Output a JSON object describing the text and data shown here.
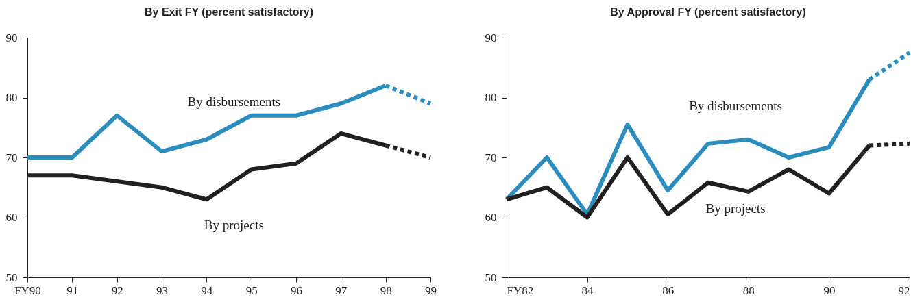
{
  "chart_data": [
    {
      "type": "line",
      "title": "By Exit FY (percent satisfactory)",
      "categories": [
        "FY90",
        "91",
        "92",
        "93",
        "94",
        "95",
        "96",
        "97",
        "98",
        "99"
      ],
      "ylim": [
        50,
        90
      ],
      "yticks": [
        50,
        60,
        70,
        80,
        90
      ],
      "grid": false,
      "marker": "none",
      "series": [
        {
          "name": "By disbursements",
          "color": "#2b8cbe",
          "line_style": "solid",
          "values": [
            70,
            70,
            77,
            71,
            73,
            77,
            77,
            79,
            82,
            null
          ]
        },
        {
          "color": "#2b8cbe",
          "line_style": "dotted",
          "values": [
            null,
            null,
            null,
            null,
            null,
            null,
            null,
            null,
            82,
            79
          ]
        },
        {
          "name": "By projects",
          "color": "#231f20",
          "line_style": "solid",
          "values": [
            67,
            67,
            66,
            65,
            63,
            68,
            69,
            74,
            72,
            null
          ]
        },
        {
          "color": "#231f20",
          "line_style": "dotted",
          "values": [
            null,
            null,
            null,
            null,
            null,
            null,
            null,
            null,
            72,
            70
          ]
        }
      ]
    },
    {
      "type": "line",
      "title": "By Approval FY (percent satisfactory)",
      "x": [
        1982,
        1983,
        1984,
        1985,
        1986,
        1987,
        1988,
        1989,
        1990,
        1991,
        1992
      ],
      "xlim": [
        1982,
        1992
      ],
      "xticks": [
        {
          "value": 1982,
          "label": "FY82"
        },
        {
          "value": 1984,
          "label": "84"
        },
        {
          "value": 1986,
          "label": "86"
        },
        {
          "value": 1988,
          "label": "88"
        },
        {
          "value": 1990,
          "label": "90"
        },
        {
          "value": 1992,
          "label": "92"
        }
      ],
      "ylim": [
        50,
        90
      ],
      "yticks": [
        50,
        60,
        70,
        80,
        90
      ],
      "grid": false,
      "marker": "none",
      "series": [
        {
          "name": "By disbursements",
          "color": "#2b8cbe",
          "line_style": "solid",
          "values": [
            63,
            70,
            60.5,
            75.5,
            64.5,
            72.3,
            73,
            70,
            71.7,
            83,
            null
          ]
        },
        {
          "color": "#2b8cbe",
          "line_style": "dotted",
          "values": [
            null,
            null,
            null,
            null,
            null,
            null,
            null,
            null,
            null,
            83,
            87.5
          ]
        },
        {
          "name": "By projects",
          "color": "#231f20",
          "line_style": "solid",
          "values": [
            63,
            65,
            60,
            70,
            60.5,
            65.8,
            64.3,
            68,
            64,
            72,
            null
          ]
        },
        {
          "color": "#231f20",
          "line_style": "dotted",
          "values": [
            null,
            null,
            null,
            null,
            null,
            null,
            null,
            null,
            null,
            72,
            72.3
          ]
        }
      ]
    }
  ]
}
